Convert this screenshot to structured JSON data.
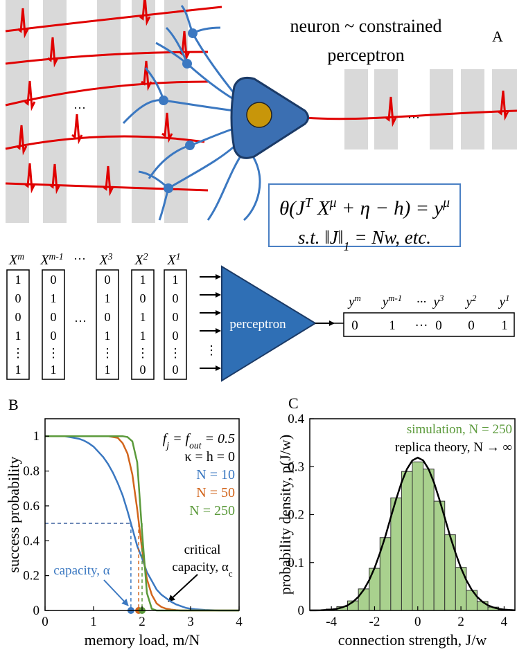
{
  "diagram": {
    "panel_label": "A",
    "title_lines": [
      "neuron ~ constrained",
      "perceptron"
    ],
    "ellipses": [
      "···",
      "···"
    ],
    "equation": {
      "line1": [
        {
          "text": "θ(J",
          "sup": "T"
        },
        {
          "text": " X",
          "sup": "μ"
        },
        {
          "text": " + η − h) = y",
          "sup": "μ"
        }
      ],
      "line2": [
        {
          "text": "s.t.  ‖J‖",
          "sub": "1"
        },
        {
          "text": " = Nw,  etc."
        }
      ]
    },
    "inputs": [
      {
        "label": [
          {
            "text": "X",
            "sup": "m"
          }
        ],
        "values": [
          "1",
          "0",
          "0",
          "1",
          "⋮",
          "1"
        ]
      },
      {
        "label": [
          {
            "text": "X",
            "sup": "m-1"
          }
        ],
        "values": [
          "0",
          "1",
          "0",
          "0",
          "⋮",
          "1"
        ]
      },
      {
        "label": [
          {
            "text": "X",
            "sup": "3"
          }
        ],
        "values": [
          "0",
          "1",
          "0",
          "1",
          "⋮",
          "1"
        ]
      },
      {
        "label": [
          {
            "text": "X",
            "sup": "2"
          }
        ],
        "values": [
          "1",
          "0",
          "1",
          "1",
          "⋮",
          "0"
        ]
      },
      {
        "label": [
          {
            "text": "X",
            "sup": "1"
          }
        ],
        "values": [
          "1",
          "0",
          "0",
          "0",
          "⋮",
          "0"
        ]
      }
    ],
    "input_ellipses": [
      "···",
      "···"
    ],
    "arrow_ellipsis": "⋮",
    "perceptron": "perceptron",
    "outputs": [
      {
        "label": [
          {
            "text": "y",
            "sup": "m"
          }
        ],
        "value": "0"
      },
      {
        "label": [
          {
            "text": "y",
            "sup": "m-1"
          }
        ],
        "value": "1"
      },
      {
        "label": "···",
        "value": "···"
      },
      {
        "label": [
          {
            "text": "y",
            "sup": "3"
          }
        ],
        "value": "0"
      },
      {
        "label": [
          {
            "text": "y",
            "sup": "2"
          }
        ],
        "value": "0"
      },
      {
        "label": [
          {
            "text": "y",
            "sup": "1"
          }
        ],
        "value": "1"
      }
    ]
  },
  "chart_data": [
    {
      "type": "line",
      "panel_label": "B",
      "xlabel": "memory load, m/N",
      "ylabel": "success probability",
      "xlim": [
        0,
        4
      ],
      "ylim": [
        0,
        1.1
      ],
      "xticks": [
        0,
        1,
        2,
        3,
        4
      ],
      "yticks": [
        0,
        0.2,
        0.4,
        0.6,
        0.8,
        1
      ],
      "threshold": 0.5,
      "annotations": [
        [
          {
            "text": "f",
            "sub": "j"
          },
          {
            "text": " = f",
            "sub": "out"
          },
          {
            "text": " = 0.5"
          }
        ],
        "κ = h = 0"
      ],
      "capacity_label": "capacity, α",
      "critical_label_lines": [
        "critical",
        [
          {
            "text": "capacity, α",
            "sub": "c"
          }
        ]
      ],
      "x": [
        0,
        0.1,
        0.2,
        0.3,
        0.4,
        0.5,
        0.6,
        0.7,
        0.8,
        0.9,
        1,
        1.1,
        1.2,
        1.3,
        1.4,
        1.5,
        1.6,
        1.7,
        1.8,
        1.9,
        2,
        2.1,
        2.2,
        2.3,
        2.4,
        2.5,
        2.6,
        2.7,
        2.8,
        2.9,
        3,
        3.1,
        3.2,
        3.3,
        3.4,
        3.5,
        3.6,
        3.7,
        3.8,
        3.9,
        4
      ],
      "series": [
        {
          "name": "N = 10",
          "color": "#3b78c1",
          "capacity": 1.77,
          "values": [
            1,
            1,
            1,
            1,
            1,
            0.995,
            0.99,
            0.985,
            0.975,
            0.96,
            0.94,
            0.91,
            0.88,
            0.84,
            0.79,
            0.73,
            0.66,
            0.57,
            0.47,
            0.37,
            0.3,
            0.22,
            0.17,
            0.12,
            0.09,
            0.07,
            0.05,
            0.035,
            0.025,
            0.015,
            0.01,
            0.007,
            0.005,
            0.003,
            0.002,
            0.001,
            0,
            0,
            0,
            0,
            0
          ]
        },
        {
          "name": "N = 50",
          "color": "#d2651c",
          "capacity": 1.93,
          "values": [
            1,
            1,
            1,
            1,
            1,
            1,
            1,
            1,
            1,
            1,
            1,
            1,
            1,
            1,
            0.995,
            0.99,
            0.96,
            0.9,
            0.78,
            0.58,
            0.35,
            0.18,
            0.09,
            0.04,
            0.02,
            0.01,
            0.005,
            0.002,
            0,
            0,
            0,
            0,
            0,
            0,
            0,
            0,
            0,
            0,
            0,
            0,
            0
          ]
        },
        {
          "name": "N = 250",
          "color": "#5b9a3b",
          "capacity": 2.0,
          "values": [
            1,
            1,
            1,
            1,
            1,
            1,
            1,
            1,
            1,
            1,
            1,
            1,
            1,
            1,
            1,
            1,
            1,
            0.995,
            0.97,
            0.85,
            0.45,
            0.1,
            0.01,
            0,
            0,
            0,
            0,
            0,
            0,
            0,
            0,
            0,
            0,
            0,
            0,
            0,
            0,
            0,
            0,
            0,
            0
          ]
        }
      ]
    },
    {
      "type": "histogram",
      "panel_label": "C",
      "xlabel": "connection strength, J/w",
      "ylabel": "probability density, p(J/w)",
      "xlim": [
        -5,
        4.5
      ],
      "ylim": [
        0,
        0.4
      ],
      "xticks": [
        -4,
        -2,
        0,
        2,
        4
      ],
      "yticks": [
        0,
        0.1,
        0.2,
        0.3,
        0.4
      ],
      "name": "simulation, N = 250",
      "label_color": "#5b9a3b",
      "color": "#a9d18e",
      "bins": [
        -4.25,
        -3.75,
        -3.25,
        -2.75,
        -2.25,
        -1.75,
        -1.25,
        -0.75,
        -0.25,
        0.25,
        0.75,
        1.25,
        1.75,
        2.25,
        2.75,
        3.25,
        3.75,
        4.25
      ],
      "values": [
        0.003,
        0.008,
        0.02,
        0.045,
        0.088,
        0.152,
        0.235,
        0.29,
        0.31,
        0.295,
        0.228,
        0.158,
        0.09,
        0.042,
        0.019,
        0.007,
        0.002
      ],
      "curve": {
        "name": "replica theory, N → ∞",
        "color": "#000000",
        "x": [
          -5,
          -4.75,
          -4.5,
          -4.25,
          -4,
          -3.75,
          -3.5,
          -3.25,
          -3,
          -2.75,
          -2.5,
          -2.25,
          -2,
          -1.75,
          -1.5,
          -1.25,
          -1,
          -0.75,
          -0.5,
          -0.25,
          0,
          0.25,
          0.5,
          0.75,
          1,
          1.25,
          1.5,
          1.75,
          2,
          2.25,
          2.5,
          2.75,
          3,
          3.25,
          3.5,
          3.75,
          4,
          4.25,
          4.5
        ],
        "values": [
          0.0001,
          0.0002,
          0.0005,
          0.001,
          0.0019,
          0.0035,
          0.0063,
          0.0109,
          0.0179,
          0.0284,
          0.0432,
          0.0632,
          0.0888,
          0.12,
          0.155,
          0.194,
          0.232,
          0.267,
          0.295,
          0.313,
          0.319,
          0.313,
          0.295,
          0.267,
          0.232,
          0.194,
          0.155,
          0.12,
          0.0888,
          0.0632,
          0.0432,
          0.0284,
          0.0179,
          0.0109,
          0.0063,
          0.0035,
          0.0019,
          0.001,
          0.0005
        ]
      }
    }
  ]
}
